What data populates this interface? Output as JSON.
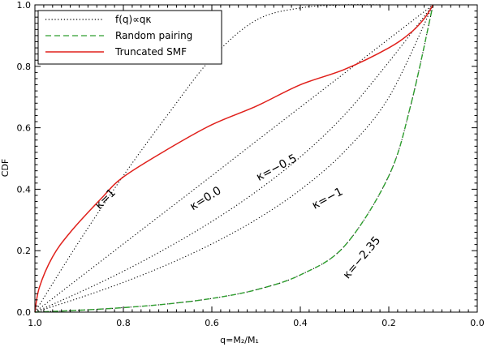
{
  "chart_data": {
    "type": "line",
    "xlabel": "q=M₂/M₁",
    "ylabel": "CDF",
    "xlim": [
      1.0,
      0.0
    ],
    "ylim": [
      0.0,
      1.0
    ],
    "x_reversed": true,
    "xticks": [
      1.0,
      0.8,
      0.6,
      0.4,
      0.2,
      0.0
    ],
    "xtick_labels": [
      "1.0",
      "0.8",
      "0.6",
      "0.4",
      "0.2",
      "0.0"
    ],
    "yticks": [
      0.0,
      0.2,
      0.4,
      0.6,
      0.8,
      1.0
    ],
    "ytick_labels": [
      "0.0",
      "0.2",
      "0.4",
      "0.6",
      "0.8",
      "1.0"
    ],
    "grid": false,
    "legend_position": "top-left",
    "legend": [
      {
        "label": "f(q)∝qκ",
        "style": "dotted",
        "color": "#000000"
      },
      {
        "label": "Random pairing",
        "style": "dashed",
        "color": "#2e9e2e"
      },
      {
        "label": "Truncated SMF",
        "style": "solid",
        "color": "#e0201b"
      }
    ],
    "series": [
      {
        "name": "κ=1",
        "style": "dotted",
        "color": "#000000",
        "x": [
          1.0,
          0.9,
          0.8,
          0.7,
          0.6,
          0.5,
          0.4,
          0.3,
          0.2,
          0.1
        ],
        "y": [
          0.0,
          0.23,
          0.444,
          0.642,
          0.827,
          0.95,
          0.99,
          1.0,
          1.0,
          1.0
        ]
      },
      {
        "name": "κ=0.0",
        "style": "dotted",
        "color": "#000000",
        "x": [
          1.0,
          0.9,
          0.8,
          0.7,
          0.6,
          0.5,
          0.4,
          0.3,
          0.2,
          0.1
        ],
        "y": [
          0.0,
          0.111,
          0.222,
          0.333,
          0.444,
          0.556,
          0.667,
          0.778,
          0.889,
          1.0
        ]
      },
      {
        "name": "κ=-0.5",
        "style": "dotted",
        "color": "#000000",
        "x": [
          1.0,
          0.9,
          0.8,
          0.7,
          0.6,
          0.5,
          0.4,
          0.3,
          0.2,
          0.1
        ],
        "y": [
          0.0,
          0.064,
          0.133,
          0.21,
          0.295,
          0.392,
          0.505,
          0.642,
          0.814,
          1.0
        ]
      },
      {
        "name": "κ=-1",
        "style": "dotted",
        "color": "#000000",
        "x": [
          1.0,
          0.9,
          0.8,
          0.7,
          0.6,
          0.5,
          0.4,
          0.3,
          0.2,
          0.1
        ],
        "y": [
          0.0,
          0.046,
          0.097,
          0.155,
          0.222,
          0.301,
          0.398,
          0.523,
          0.699,
          1.0
        ]
      },
      {
        "name": "κ=-2.35",
        "style": "dotted",
        "color": "#000000",
        "x": [
          1.0,
          0.9,
          0.8,
          0.7,
          0.6,
          0.5,
          0.4,
          0.3,
          0.2,
          0.15,
          0.1
        ],
        "y": [
          0.0,
          0.0062,
          0.0147,
          0.0267,
          0.0446,
          0.0727,
          0.1211,
          0.2152,
          0.4433,
          0.6757,
          1.0
        ]
      },
      {
        "name": "Random pairing",
        "style": "dashed",
        "color": "#2e9e2e",
        "x": [
          1.0,
          0.9,
          0.8,
          0.7,
          0.6,
          0.5,
          0.4,
          0.3,
          0.2,
          0.15,
          0.1
        ],
        "y": [
          0.0,
          0.0062,
          0.0147,
          0.0267,
          0.0446,
          0.0727,
          0.1211,
          0.2152,
          0.4433,
          0.6757,
          1.0
        ]
      },
      {
        "name": "Truncated SMF",
        "style": "solid",
        "color": "#e0201b",
        "x": [
          1.0,
          0.99,
          0.96,
          0.92,
          0.85,
          0.8,
          0.7,
          0.6,
          0.5,
          0.4,
          0.3,
          0.2,
          0.15,
          0.12,
          0.1
        ],
        "y": [
          0.0,
          0.08,
          0.18,
          0.26,
          0.37,
          0.44,
          0.53,
          0.61,
          0.67,
          0.74,
          0.79,
          0.86,
          0.91,
          0.955,
          1.0
        ]
      }
    ],
    "annotations": [
      {
        "text": "κ=1",
        "x": 0.835,
        "y": 0.36,
        "rotation": -45
      },
      {
        "text": "κ=0.0",
        "x": 0.61,
        "y": 0.36,
        "rotation": -32
      },
      {
        "text": "κ=−0.5",
        "x": 0.45,
        "y": 0.46,
        "rotation": -28
      },
      {
        "text": "κ=−1",
        "x": 0.335,
        "y": 0.36,
        "rotation": -28
      },
      {
        "text": "κ=−2.35",
        "x": 0.255,
        "y": 0.17,
        "rotation": -50
      }
    ]
  }
}
